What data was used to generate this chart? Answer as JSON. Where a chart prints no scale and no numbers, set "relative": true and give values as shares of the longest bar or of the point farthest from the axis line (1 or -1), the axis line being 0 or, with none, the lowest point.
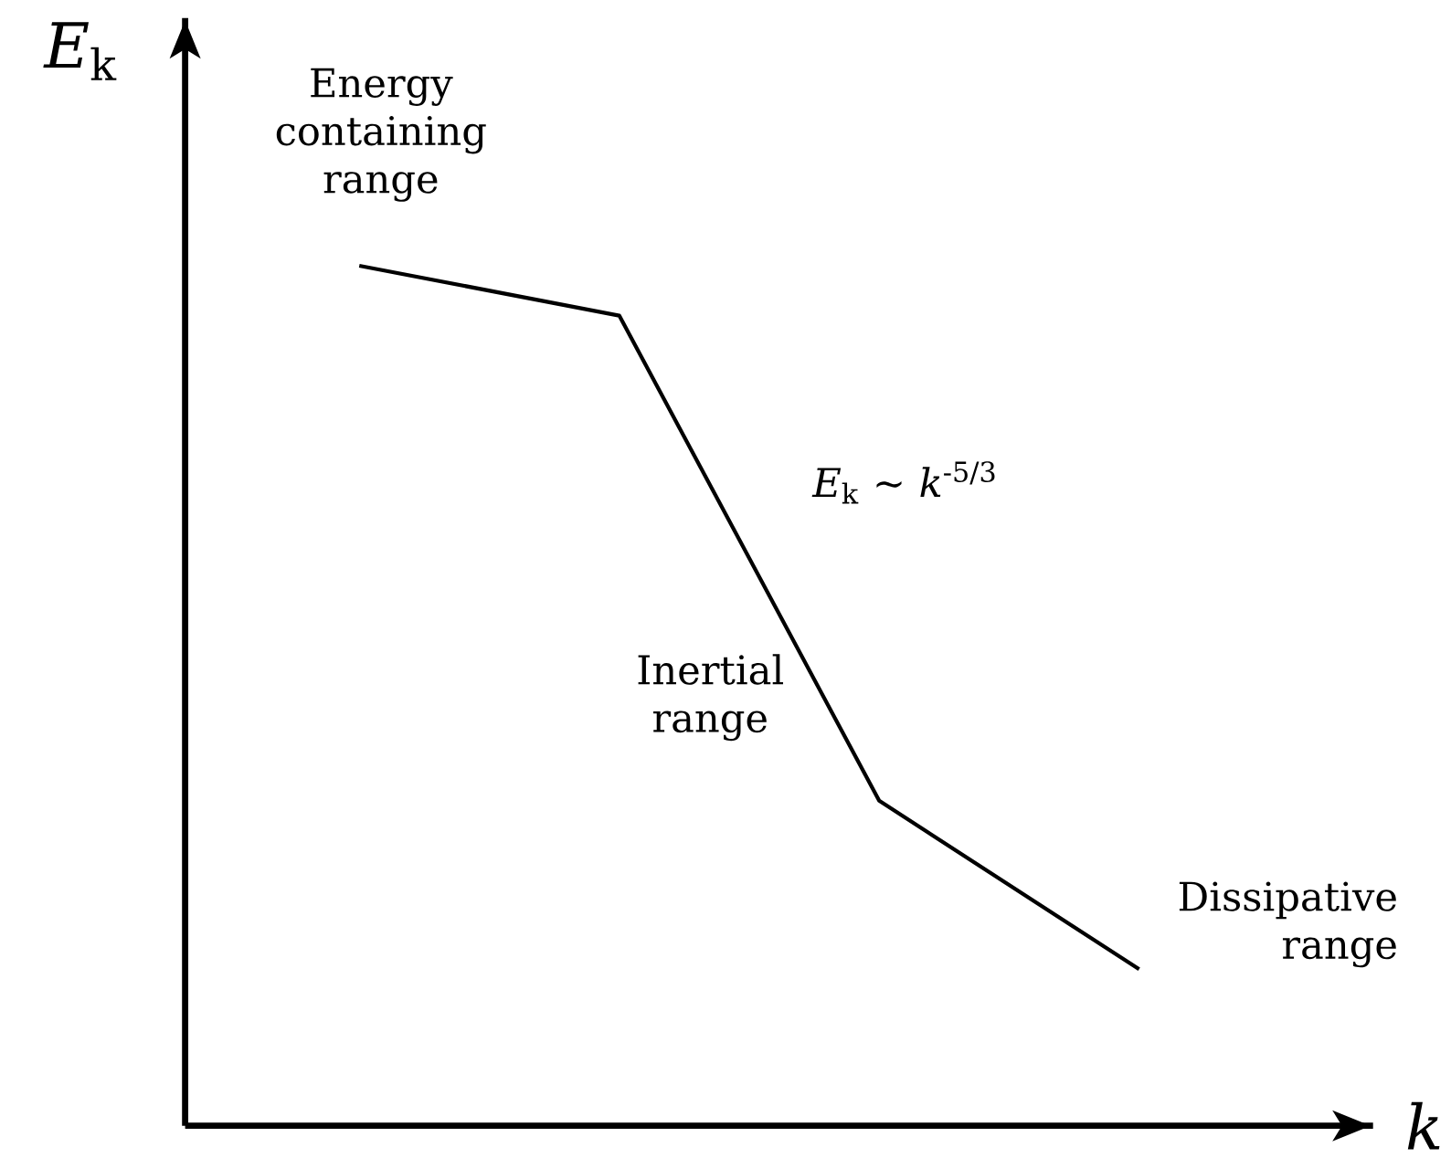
{
  "chart_data": {
    "type": "line",
    "relative": true,
    "xlabel": "*k*",
    "ylabel": "*E*$_{k}$",
    "categories": [
      null,
      null,
      null,
      null
    ],
    "values": [
      1.0,
      0.942,
      0.378,
      0.182
    ],
    "color": "#000000",
    "annotations": [
      "Energy containing range",
      "Inertial range",
      "Dissipative range",
      "*E*$_{k}$ ~ *k*$^{-5/3}$"
    ]
  }
}
